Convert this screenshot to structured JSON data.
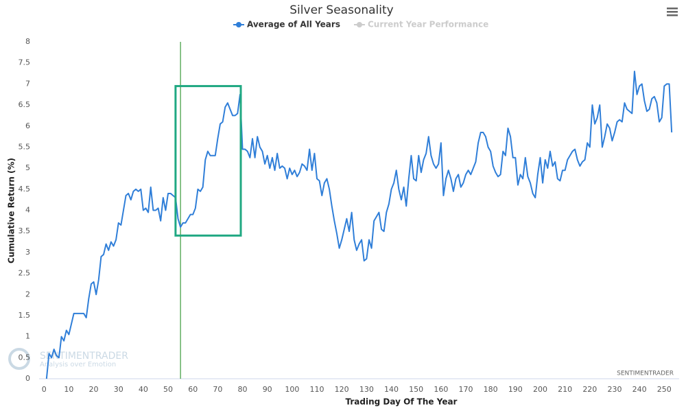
{
  "chart_data": {
    "type": "line",
    "title": "Silver Seasonality",
    "x_label": "Trading Day Of The Year",
    "y_label": "Cumulative Return (%)",
    "x": [
      1,
      2,
      3,
      4,
      5,
      6,
      7,
      8,
      9,
      10,
      11,
      12,
      13,
      14,
      15,
      16,
      17,
      18,
      19,
      20,
      21,
      22,
      23,
      24,
      25,
      26,
      27,
      28,
      29,
      30,
      31,
      32,
      33,
      34,
      35,
      36,
      37,
      38,
      39,
      40,
      41,
      42,
      43,
      44,
      45,
      46,
      47,
      48,
      49,
      50,
      51,
      52,
      53,
      54,
      55,
      56,
      57,
      58,
      59,
      60,
      61,
      62,
      63,
      64,
      65,
      66,
      67,
      68,
      69,
      70,
      71,
      72,
      73,
      74,
      75,
      76,
      77,
      78,
      79,
      80,
      81,
      82,
      83,
      84,
      85,
      86,
      87,
      88,
      89,
      90,
      91,
      92,
      93,
      94,
      95,
      96,
      97,
      98,
      99,
      100,
      101,
      102,
      103,
      104,
      105,
      106,
      107,
      108,
      109,
      110,
      111,
      112,
      113,
      114,
      115,
      116,
      117,
      118,
      119,
      120,
      121,
      122,
      123,
      124,
      125,
      126,
      127,
      128,
      129,
      130,
      131,
      132,
      133,
      134,
      135,
      136,
      137,
      138,
      139,
      140,
      141,
      142,
      143,
      144,
      145,
      146,
      147,
      148,
      149,
      150,
      151,
      152,
      153,
      154,
      155,
      156,
      157,
      158,
      159,
      160,
      161,
      162,
      163,
      164,
      165,
      166,
      167,
      168,
      169,
      170,
      171,
      172,
      173,
      174,
      175,
      176,
      177,
      178,
      179,
      180,
      181,
      182,
      183,
      184,
      185,
      186,
      187,
      188,
      189,
      190,
      191,
      192,
      193,
      194,
      195,
      196,
      197,
      198,
      199,
      200,
      201,
      202,
      203,
      204,
      205,
      206,
      207,
      208,
      209,
      210,
      211,
      212,
      213,
      214,
      215,
      216,
      217,
      218,
      219,
      220,
      221,
      222,
      223,
      224,
      225,
      226,
      227,
      228,
      229,
      230,
      231,
      232,
      233,
      234,
      235,
      236,
      237,
      238,
      239,
      240,
      241,
      242,
      243,
      244,
      245,
      246,
      247,
      248,
      249,
      250,
      251,
      252,
      253
    ],
    "series": [
      {
        "name": "Average of All Years",
        "color": "#2f7ed8",
        "values": [
          0,
          0.6,
          0.5,
          0.7,
          0.55,
          0.5,
          1.0,
          0.9,
          1.15,
          1.05,
          1.3,
          1.55,
          1.55,
          1.55,
          1.55,
          1.55,
          1.45,
          1.9,
          2.25,
          2.3,
          2.0,
          2.35,
          2.9,
          2.95,
          3.2,
          3.05,
          3.25,
          3.15,
          3.3,
          3.7,
          3.65,
          4.0,
          4.35,
          4.4,
          4.25,
          4.45,
          4.5,
          4.45,
          4.5,
          4.0,
          4.05,
          3.95,
          4.55,
          4.0,
          4.0,
          4.05,
          3.75,
          4.3,
          4.0,
          4.4,
          4.4,
          4.35,
          4.3,
          3.8,
          3.6,
          3.7,
          3.7,
          3.8,
          3.9,
          3.9,
          4.05,
          4.5,
          4.45,
          4.55,
          5.2,
          5.4,
          5.3,
          5.3,
          5.3,
          5.7,
          6.05,
          6.1,
          6.45,
          6.55,
          6.4,
          6.25,
          6.25,
          6.3,
          6.75,
          5.45,
          5.45,
          5.4,
          5.25,
          5.7,
          5.25,
          5.75,
          5.5,
          5.4,
          5.1,
          5.3,
          5.0,
          5.25,
          4.95,
          5.35,
          5.0,
          5.05,
          5.0,
          4.75,
          5.0,
          4.85,
          4.95,
          4.8,
          4.9,
          5.1,
          5.05,
          4.95,
          5.45,
          4.95,
          5.35,
          4.75,
          4.7,
          4.35,
          4.65,
          4.75,
          4.5,
          4.1,
          3.75,
          3.45,
          3.1,
          3.3,
          3.55,
          3.8,
          3.5,
          3.95,
          3.3,
          3.05,
          3.2,
          3.3,
          2.8,
          2.85,
          3.3,
          3.1,
          3.75,
          3.85,
          3.95,
          3.55,
          3.5,
          3.95,
          4.15,
          4.5,
          4.65,
          4.95,
          4.5,
          4.25,
          4.55,
          4.1,
          4.75,
          5.3,
          4.75,
          4.7,
          5.3,
          4.9,
          5.2,
          5.35,
          5.75,
          5.3,
          5.1,
          5.0,
          5.1,
          5.6,
          4.35,
          4.75,
          4.95,
          4.75,
          4.45,
          4.75,
          4.85,
          4.55,
          4.65,
          4.85,
          4.95,
          4.85,
          5.0,
          5.15,
          5.6,
          5.85,
          5.85,
          5.75,
          5.5,
          5.4,
          5.05,
          4.9,
          4.8,
          4.85,
          5.4,
          5.3,
          5.95,
          5.75,
          5.25,
          5.25,
          4.6,
          4.85,
          4.75,
          5.25,
          4.8,
          4.65,
          4.4,
          4.3,
          4.85,
          5.25,
          4.65,
          5.2,
          5.0,
          5.4,
          5.05,
          5.15,
          4.75,
          4.7,
          4.95,
          4.95,
          5.2,
          5.3,
          5.4,
          5.45,
          5.2,
          5.05,
          5.15,
          5.2,
          5.6,
          5.5,
          6.5,
          6.05,
          6.2,
          6.5,
          5.5,
          5.75,
          6.05,
          5.95,
          5.65,
          5.85,
          6.1,
          6.15,
          6.1,
          6.55,
          6.4,
          6.35,
          6.3,
          7.3,
          6.75,
          6.95,
          7.0,
          6.6,
          6.35,
          6.4,
          6.65,
          6.7,
          6.55,
          6.1,
          6.2,
          6.95,
          7.0,
          7.0,
          5.85
        ]
      }
    ],
    "hidden_series": [
      {
        "name": "Current Year Performance",
        "color": "#cccccc"
      }
    ],
    "xlim": [
      -2,
      256
    ],
    "ylim": [
      0,
      8
    ],
    "xticks": [
      0,
      10,
      20,
      30,
      40,
      50,
      60,
      70,
      80,
      90,
      100,
      110,
      120,
      130,
      140,
      150,
      160,
      170,
      180,
      190,
      200,
      210,
      220,
      230,
      240,
      250
    ],
    "yticks": [
      0,
      0.5,
      1,
      1.5,
      2,
      2.5,
      3,
      3.5,
      4,
      4.5,
      5,
      5.5,
      6,
      6.5,
      7,
      7.5,
      8
    ],
    "vline": {
      "x": 55,
      "color": "#3a9a3a"
    },
    "highlight_box": {
      "x": [
        53,
        79.3
      ],
      "y": [
        3.4,
        6.95
      ],
      "color": "#20a882"
    },
    "watermark": {
      "brand": "SENTIMENTRADER",
      "tagline": "Analysis over Emotion"
    },
    "credit": "SENTIMENTRADER"
  }
}
